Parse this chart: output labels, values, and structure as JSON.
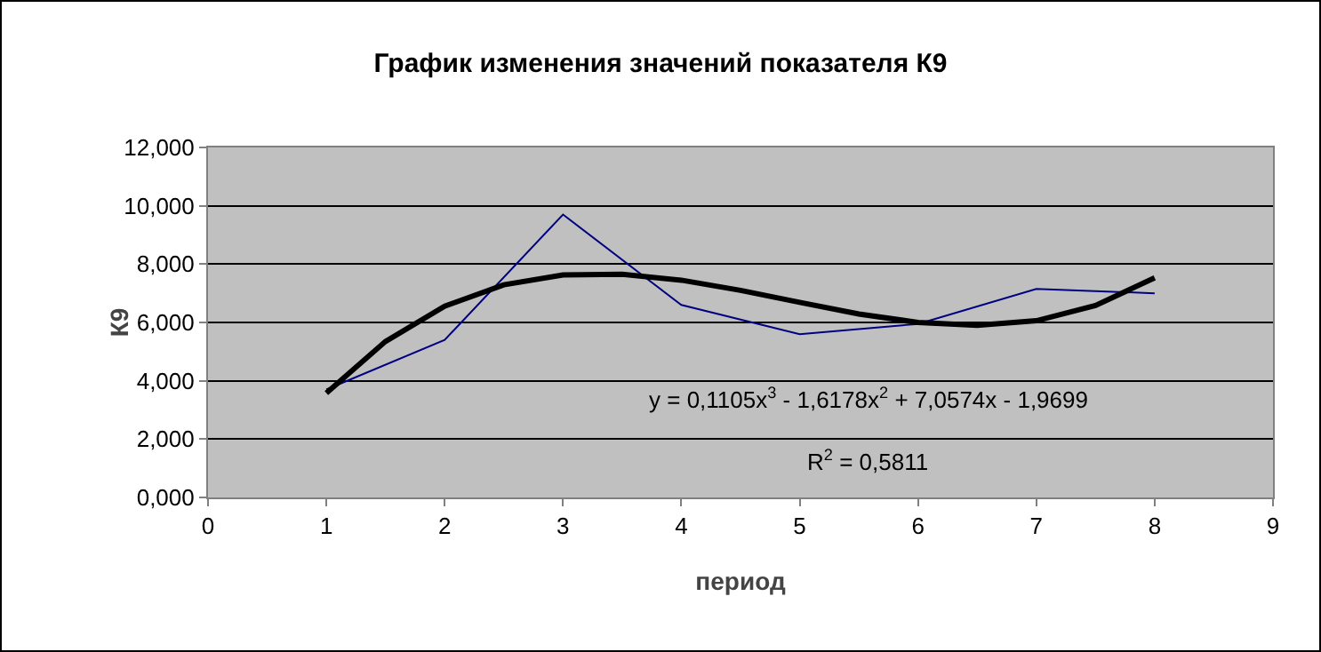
{
  "chart_data": {
    "type": "line",
    "title": "График изменения значений показателя К9",
    "xlabel": "период",
    "ylabel": "К9",
    "xlim": [
      0,
      9
    ],
    "xticks": [
      0,
      1,
      2,
      3,
      4,
      5,
      6,
      7,
      8,
      9
    ],
    "ylim": [
      0,
      12
    ],
    "yticks": [
      {
        "value": 0,
        "label": "0,000"
      },
      {
        "value": 2,
        "label": "2,000"
      },
      {
        "value": 4,
        "label": "4,000"
      },
      {
        "value": 6,
        "label": "6,000"
      },
      {
        "value": 8,
        "label": "8,000"
      },
      {
        "value": 10,
        "label": "10,000"
      },
      {
        "value": 12,
        "label": "12,000"
      }
    ],
    "grid": "y",
    "marker": "none",
    "series": [
      {
        "color": "#000080",
        "x": [
          1,
          2,
          3,
          4,
          5,
          6,
          7,
          8
        ],
        "values": [
          3.7,
          5.4,
          9.7,
          6.6,
          5.6,
          5.95,
          7.15,
          7.0
        ]
      },
      {
        "type": "line",
        "color": "#000000",
        "x": [
          1,
          1.5,
          2,
          2.5,
          3,
          3.5,
          4,
          4.5,
          5,
          5.5,
          6,
          6.5,
          7,
          7.5,
          8
        ],
        "values": [
          3.58,
          5.35,
          6.56,
          7.29,
          7.63,
          7.65,
          7.45,
          7.1,
          6.69,
          6.29,
          6.0,
          5.9,
          6.06,
          6.58,
          7.53
        ]
      }
    ],
    "annotations": [
      "y = 0,1105x$^{3}$ - 1,6178x$^{2}$ + 7,0574x - 1,9699",
      "R$^{2}$ = 0,5811"
    ]
  }
}
